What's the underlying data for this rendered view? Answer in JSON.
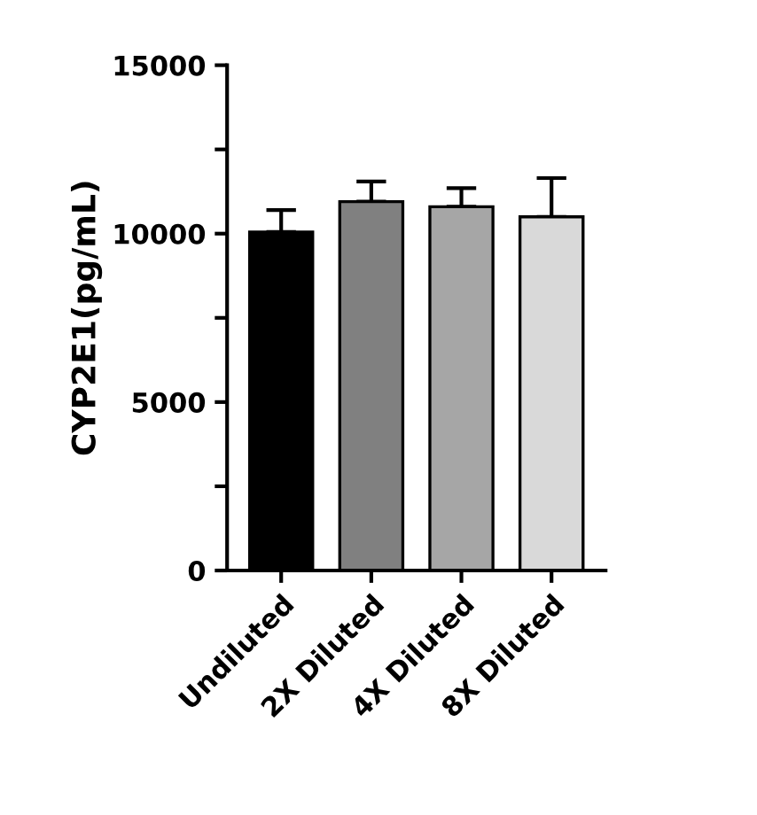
{
  "chart_data": {
    "type": "bar",
    "ylabel": "CYP2E1(pg/mL)",
    "categories": [
      "Undiluted",
      "2X Diluted",
      "4X Diluted",
      "8X Diluted"
    ],
    "values": [
      10050,
      10950,
      10800,
      10500
    ],
    "errors": [
      [
        10050,
        10700
      ],
      [
        10950,
        11550
      ],
      [
        10800,
        11350
      ],
      [
        10500,
        11650
      ]
    ],
    "colors": [
      "#000000",
      "#808080",
      "#a6a6a6",
      "#d9d9d9"
    ],
    "ylim": [
      0,
      15000
    ],
    "yticks": [
      0,
      {
        "value": 2500,
        "label": null
      },
      5000,
      {
        "value": 7500,
        "label": null
      },
      10000,
      {
        "value": 12500,
        "label": null
      },
      15000
    ],
    "grid": false
  }
}
